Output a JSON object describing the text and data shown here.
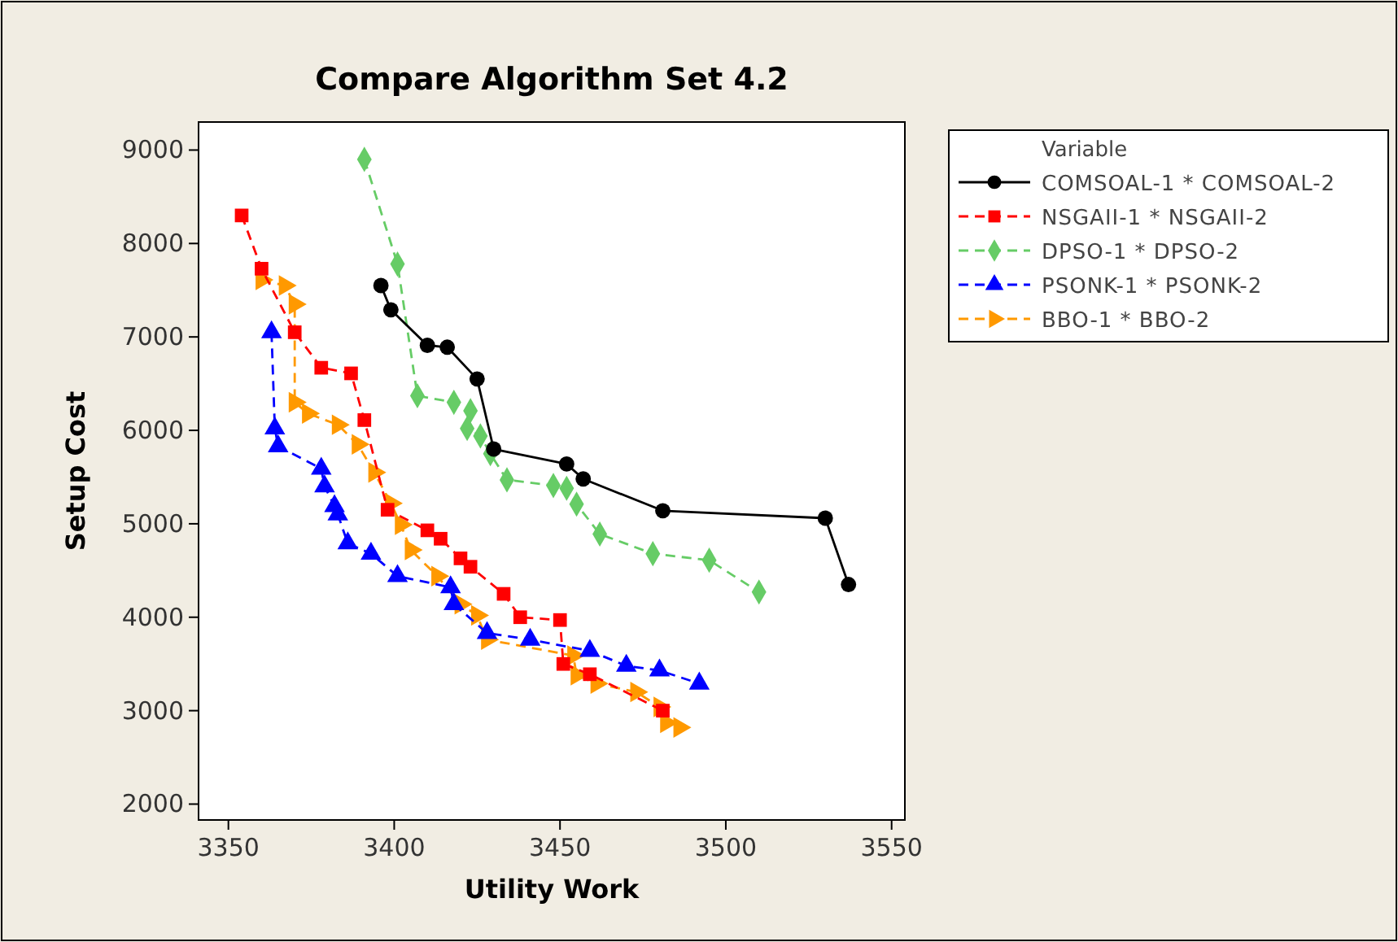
{
  "chart_data": {
    "type": "line",
    "title": "Compare Algorithm Set 4.2",
    "xlabel": "Utility Work",
    "ylabel": "Setup Cost",
    "legend_title": "Variable",
    "legend": "top right",
    "xlim": [
      3341,
      3554
    ],
    "xticks": [
      3350,
      3400,
      3450,
      3500,
      3550
    ],
    "ylim": [
      1830,
      9300
    ],
    "yticks": [
      2000,
      3000,
      4000,
      5000,
      6000,
      7000,
      8000,
      9000
    ],
    "grid": false,
    "series": [
      {
        "name": "COMSOAL-1 * COMSOAL-2",
        "color": "#000000",
        "marker": "circle",
        "line_style": "solid",
        "x": [
          3396,
          3399,
          3410,
          3416,
          3425,
          3430,
          3452,
          3457,
          3481,
          3530,
          3537
        ],
        "values": [
          7550,
          7290,
          6910,
          6890,
          6550,
          5800,
          5640,
          5480,
          5140,
          5060,
          4350
        ]
      },
      {
        "name": "NSGAII-1 * NSGAII-2",
        "color": "#ff0000",
        "marker": "square",
        "line_style": "dashed",
        "x": [
          3354,
          3360,
          3370,
          3378,
          3387,
          3391,
          3398,
          3410,
          3414,
          3420,
          3423,
          3433,
          3438,
          3450,
          3451,
          3459,
          3481
        ],
        "values": [
          8300,
          7730,
          7050,
          6670,
          6610,
          6110,
          5150,
          4930,
          4840,
          4630,
          4540,
          4250,
          4000,
          3970,
          3500,
          3390,
          3000
        ]
      },
      {
        "name": "DPSO-1 * DPSO-2",
        "color": "#66cc66",
        "marker": "diamond",
        "line_style": "dashed",
        "x": [
          3391,
          3401,
          3407,
          3418,
          3423,
          3422,
          3426,
          3429,
          3434,
          3448,
          3452,
          3455,
          3462,
          3478,
          3495,
          3510
        ],
        "values": [
          8900,
          7780,
          6370,
          6300,
          6210,
          6020,
          5940,
          5750,
          5470,
          5410,
          5380,
          5210,
          4890,
          4680,
          4610,
          4270
        ]
      },
      {
        "name": "PSONK-1 * PSONK-2",
        "color": "#0000ff",
        "marker": "triangle",
        "line_style": "dashed",
        "x": [
          3363,
          3364,
          3365,
          3378,
          3379,
          3382,
          3383,
          3386,
          3393,
          3401,
          3417,
          3418,
          3428,
          3441,
          3459,
          3470,
          3480,
          3492
        ],
        "values": [
          7050,
          6020,
          5830,
          5590,
          5400,
          5190,
          5100,
          4790,
          4680,
          4440,
          4320,
          4140,
          3830,
          3760,
          3640,
          3480,
          3430,
          3290
        ]
      },
      {
        "name": "BBO-1 * BBO-2",
        "color": "#ff9900",
        "marker": "triangle-right",
        "line_style": "dashed",
        "x": [
          3360,
          3367,
          3370,
          3370,
          3374,
          3383,
          3389,
          3394,
          3399,
          3402,
          3405,
          3413,
          3420,
          3425,
          3428,
          3454,
          3455,
          3461,
          3473,
          3480,
          3482,
          3486
        ],
        "values": [
          7610,
          7550,
          7350,
          6300,
          6180,
          6060,
          5850,
          5550,
          5220,
          4990,
          4720,
          4440,
          4140,
          4020,
          3760,
          3590,
          3380,
          3290,
          3200,
          3040,
          2870,
          2820
        ]
      }
    ]
  }
}
